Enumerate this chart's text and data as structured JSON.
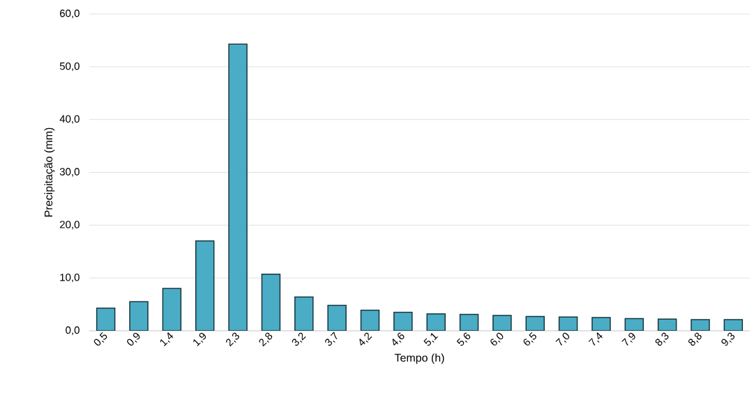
{
  "chart_data": {
    "type": "bar",
    "xlabel": "Tempo (h)",
    "ylabel": "Precipitação (mm)",
    "categories": [
      "0,5",
      "0,9",
      "1,4",
      "1,9",
      "2,3",
      "2,8",
      "3,2",
      "3,7",
      "4,2",
      "4,6",
      "5,1",
      "5,6",
      "6,0",
      "6,5",
      "7,0",
      "7,4",
      "7,9",
      "8,3",
      "8,8",
      "9,3"
    ],
    "values": [
      4.3,
      5.5,
      8.0,
      17.0,
      54.3,
      10.7,
      6.4,
      4.8,
      3.9,
      3.5,
      3.2,
      3.1,
      2.9,
      2.7,
      2.6,
      2.5,
      2.3,
      2.2,
      2.1,
      2.1
    ],
    "color": "#4bacc6",
    "ylim": [
      0,
      60
    ],
    "yticks": [
      {
        "value": 0,
        "label": "0,0"
      },
      {
        "value": 10,
        "label": "10,0"
      },
      {
        "value": 20,
        "label": "20,0"
      },
      {
        "value": 30,
        "label": "30,0"
      },
      {
        "value": 40,
        "label": "40,0"
      },
      {
        "value": 50,
        "label": "50,0"
      },
      {
        "value": 60,
        "label": "60,0"
      }
    ],
    "grid": "y"
  }
}
